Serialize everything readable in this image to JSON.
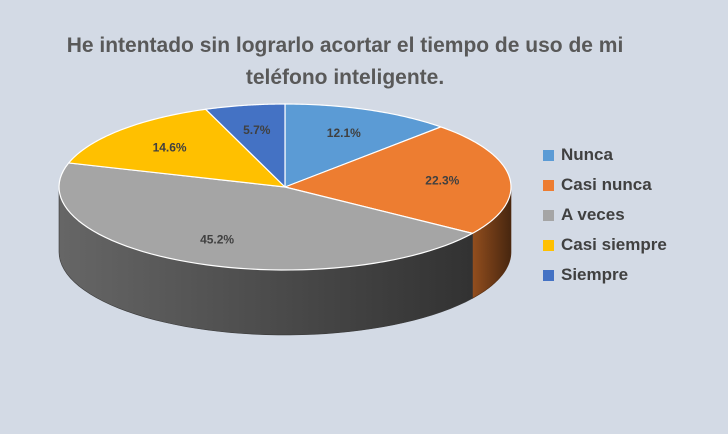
{
  "chart_data": {
    "type": "pie",
    "title": "He intentado sin lograrlo acortar el tiempo de uso de mi teléfono inteligente.",
    "categories": [
      "Nunca",
      "Casi nunca",
      "A veces",
      "Casi siempre",
      "Siempre"
    ],
    "values": [
      12.1,
      22.3,
      45.2,
      14.6,
      5.7
    ],
    "data_labels": [
      "12.1%",
      "22.3%",
      "45.2%",
      "14.6%",
      "5.7%"
    ],
    "colors": [
      "#5b9bd5",
      "#ed7d31",
      "#a5a5a5",
      "#ffc000",
      "#4472c4"
    ],
    "legend_position": "right",
    "style": "3d-pie"
  }
}
